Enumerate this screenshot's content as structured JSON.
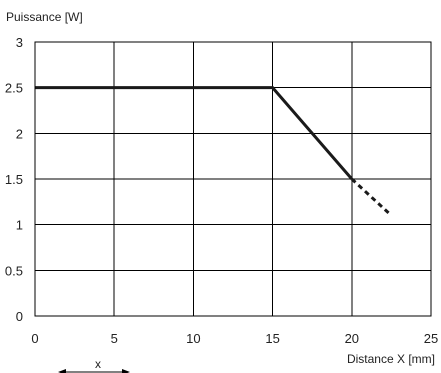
{
  "chart_data": {
    "type": "line",
    "ylabel": "Puissance [W]",
    "xlabel": "Distance X [mm]",
    "xlim": [
      0,
      25
    ],
    "ylim": [
      0,
      3
    ],
    "x_ticks": [
      "0",
      "5",
      "10",
      "15",
      "20",
      "25"
    ],
    "y_ticks": [
      "0",
      "0.5",
      "1",
      "1.5",
      "2",
      "2.5",
      "3"
    ],
    "grid": true,
    "series": [
      {
        "style": "solid",
        "x": [
          0,
          15,
          20
        ],
        "y": [
          2.5,
          2.5,
          1.5
        ]
      },
      {
        "style": "dashed",
        "x": [
          20,
          22.5
        ],
        "y": [
          1.5,
          1.1
        ]
      }
    ],
    "legend_diagram": {
      "label": "x"
    }
  }
}
